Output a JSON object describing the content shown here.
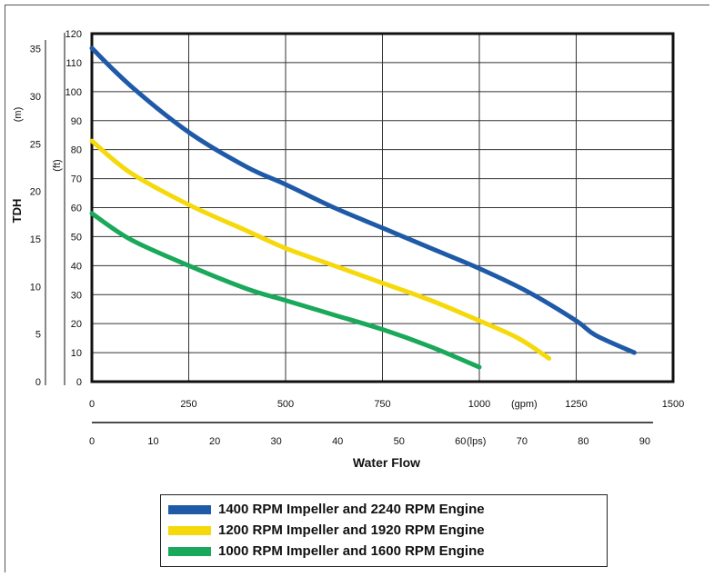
{
  "chart_data": {
    "type": "line",
    "xlabel": "Water Flow",
    "ylabel": "TDH",
    "x_unit_primary": "(gpm)",
    "x_unit_secondary": "(lps)",
    "y_unit_feet": "(ft)",
    "y_unit_meters": "(m)",
    "xlim_gpm": [
      0,
      1500
    ],
    "ylim_ft": [
      0,
      120
    ],
    "ylim_m": [
      0,
      36.6
    ],
    "xlim_lps": [
      0,
      94.6
    ],
    "x_ticks_gpm": [
      "0",
      "250",
      "500",
      "750",
      "1000",
      "1250",
      "1500"
    ],
    "x_ticks_lps": [
      "0",
      "10",
      "20",
      "30",
      "40",
      "50",
      "60",
      "70",
      "80",
      "90"
    ],
    "y_ticks_ft": [
      "0",
      "10",
      "20",
      "30",
      "40",
      "50",
      "60",
      "70",
      "80",
      "90",
      "100",
      "110",
      "120"
    ],
    "y_ticks_m": [
      "0",
      "5",
      "10",
      "15",
      "20",
      "25",
      "30",
      "35"
    ],
    "grid": true,
    "legend_position": "bottom",
    "series": [
      {
        "name": "1400 RPM Impeller and 2240 RPM Engine",
        "color": "#1f5aa8",
        "points": [
          [
            0,
            115
          ],
          [
            100,
            102
          ],
          [
            250,
            86
          ],
          [
            400,
            74
          ],
          [
            500,
            68
          ],
          [
            625,
            60
          ],
          [
            750,
            53
          ],
          [
            875,
            46
          ],
          [
            1000,
            39
          ],
          [
            1125,
            31
          ],
          [
            1250,
            21
          ],
          [
            1300,
            16
          ],
          [
            1400,
            10
          ]
        ]
      },
      {
        "name": "1200 RPM Impeller and 1920 RPM Engine",
        "color": "#f5d90a",
        "points": [
          [
            0,
            83
          ],
          [
            100,
            72
          ],
          [
            250,
            61
          ],
          [
            400,
            52
          ],
          [
            500,
            46
          ],
          [
            625,
            40
          ],
          [
            750,
            34
          ],
          [
            875,
            28
          ],
          [
            1000,
            21
          ],
          [
            1100,
            15
          ],
          [
            1180,
            8
          ]
        ]
      },
      {
        "name": "1000 RPM Impeller and 1600 RPM Engine",
        "color": "#1aa85a",
        "points": [
          [
            0,
            58
          ],
          [
            100,
            49
          ],
          [
            250,
            40
          ],
          [
            400,
            32
          ],
          [
            500,
            28
          ],
          [
            625,
            23
          ],
          [
            750,
            18
          ],
          [
            875,
            12
          ],
          [
            1000,
            5
          ]
        ]
      }
    ]
  }
}
